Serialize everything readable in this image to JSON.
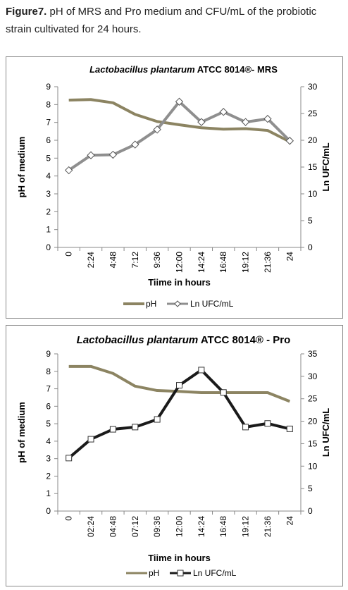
{
  "caption": {
    "label": "Figure7.",
    "text": " pH of MRS and Pro medium and CFU/mL of the probiotic strain cultivated for 24 hours."
  },
  "colors": {
    "ph": "#8c8462",
    "ufc_mrs": "#8f8f8f",
    "ufc_pro": "#1a1a1a",
    "marker_fill": "#ffffff"
  },
  "chart_data": [
    {
      "type": "line",
      "title_italic": "Lactobacillus plantarum",
      "title_rest": " ATCC 8014®-  MRS",
      "xlabel": "Tiime in hours",
      "ylabel": "pH of medium",
      "y2label": "Ln UFC/mL",
      "categories": [
        "0",
        "2:24",
        "4:48",
        "7:12",
        "9:36",
        "12:00",
        "14:24",
        "16:48",
        "19:12",
        "21:36",
        "24"
      ],
      "ylim": [
        0,
        9
      ],
      "yticks": [
        0,
        1,
        2,
        3,
        4,
        5,
        6,
        7,
        8,
        9
      ],
      "y2lim": [
        0,
        30
      ],
      "y2ticks": [
        0,
        5,
        10,
        15,
        20,
        25,
        30
      ],
      "series": [
        {
          "name": "pH",
          "axis": "left",
          "marker": "none",
          "values": [
            8.25,
            8.28,
            8.1,
            7.45,
            7.05,
            6.87,
            6.7,
            6.62,
            6.65,
            6.55,
            5.92
          ]
        },
        {
          "name": "Ln UFC/mL",
          "axis": "right",
          "marker": "diamond",
          "values": [
            14.4,
            17.2,
            17.3,
            19.2,
            22.0,
            27.2,
            23.4,
            25.3,
            23.4,
            24.0,
            19.9
          ]
        }
      ],
      "legend": "bottom"
    },
    {
      "type": "line",
      "title_italic": "Lactobacillus plantarum",
      "title_rest": " ATCC 8014® -  Pro",
      "xlabel": "Tiime in hours",
      "ylabel": "pH of  medium",
      "y2label": "Ln UFC/mL",
      "categories": [
        "0",
        "02:24",
        "04:48",
        "07:12",
        "09:36",
        "12:00",
        "14:24",
        "16:48",
        "19:12",
        "21:36",
        "24"
      ],
      "ylim": [
        0,
        9
      ],
      "yticks": [
        0,
        1,
        2,
        3,
        4,
        5,
        6,
        7,
        8,
        9
      ],
      "y2lim": [
        0,
        35
      ],
      "y2ticks": [
        0,
        5,
        10,
        15,
        20,
        25,
        30,
        35
      ],
      "series": [
        {
          "name": "pH",
          "axis": "left",
          "marker": "none",
          "values": [
            8.28,
            8.28,
            7.88,
            7.15,
            6.9,
            6.85,
            6.78,
            6.78,
            6.78,
            6.78,
            6.28
          ]
        },
        {
          "name": "Ln UFC/mL",
          "axis": "right",
          "marker": "square",
          "values": [
            11.8,
            16.0,
            18.2,
            18.7,
            20.4,
            28.0,
            31.4,
            26.4,
            18.7,
            19.5,
            18.3
          ]
        }
      ],
      "legend": "bottom"
    }
  ]
}
